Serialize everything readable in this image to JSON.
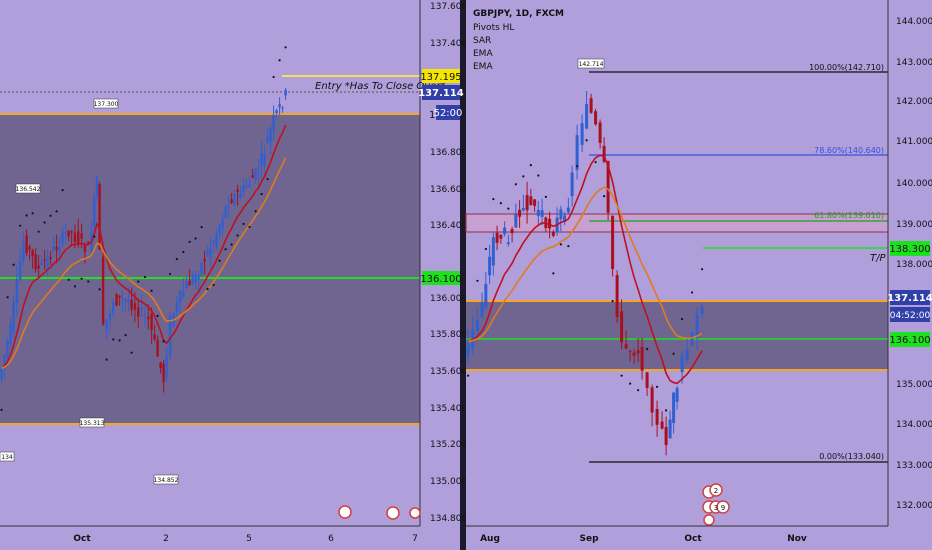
{
  "colors": {
    "background": "#b19fdc",
    "zone_fill": "#6f6590",
    "orange_line": "#f5a623",
    "green_line": "#1fe01f",
    "entry_line": "#f0e060",
    "up_candle": "#2f5fd0",
    "down_candle": "#a81020",
    "ema_red": "#c01020",
    "ema_orange": "#e07a20",
    "fib_blue": "#3050e0",
    "black": "#111111"
  },
  "left_panel": {
    "price_axis": [
      "137.600",
      "137.400",
      "137.200",
      "137.000",
      "136.800",
      "136.600",
      "136.400",
      "136.200",
      "136.000",
      "135.800",
      "135.600",
      "135.400",
      "135.200",
      "135.000",
      "134.800"
    ],
    "time_axis": [
      "Oct",
      "2",
      "5",
      "6",
      "7"
    ],
    "entry_price": "137.195",
    "last_price": "137.114",
    "countdown": "52:00",
    "green_price": "136.100",
    "entry_note": "Entry *Has To Close Over*",
    "pivots": [
      "137.300",
      "136.542",
      "135.313",
      "135.054",
      "134.852",
      "134"
    ],
    "partial_axis_label": "1"
  },
  "right_panel": {
    "header": {
      "symbol": "GBPJPY, 1D, FXCM",
      "indicators": [
        "Pivots HL",
        "SAR",
        "EMA",
        "EMA"
      ]
    },
    "price_axis": [
      "144.000",
      "143.000",
      "142.000",
      "141.000",
      "140.000",
      "139.000",
      "138.000",
      "137.000",
      "136.000",
      "135.000",
      "134.000",
      "133.000",
      "132.000"
    ],
    "time_axis": [
      "Aug",
      "Sep",
      "Oct",
      "Nov"
    ],
    "last_price": "137.114",
    "countdown": "04:52:00",
    "tp_price": "138.300",
    "tp_label": "T/P",
    "green_price": "136.100",
    "pivot_high": "142.714",
    "fib": {
      "f100": "100.00%(142.710)",
      "f786": "78.60%(140.640)",
      "f618": "61.80%(139.010)",
      "f0": "0.00%(133.040)"
    },
    "events": [
      "2",
      "3",
      "9"
    ]
  },
  "chart_data": [
    {
      "type": "candlestick",
      "title": "",
      "ylim": [
        134.7,
        137.75
      ],
      "lines": {
        "entry": 137.195,
        "zone_top": 137.0,
        "green": 136.1,
        "zone_bottom": 135.3
      },
      "x": [
        "Oct",
        "2",
        "5",
        "6",
        "7"
      ]
    },
    {
      "type": "candlestick",
      "title": "GBPJPY, 1D, FXCM",
      "ylim": [
        131.5,
        144.6
      ],
      "lines": {
        "fib_100": 142.71,
        "fib_786": 140.64,
        "fib_618": 139.01,
        "fib_0": 133.04,
        "tp": 138.3,
        "green": 136.1,
        "zone_top": 137.0,
        "zone_bottom": 135.3
      },
      "x": [
        "Aug",
        "Sep",
        "Oct",
        "Nov"
      ]
    }
  ]
}
